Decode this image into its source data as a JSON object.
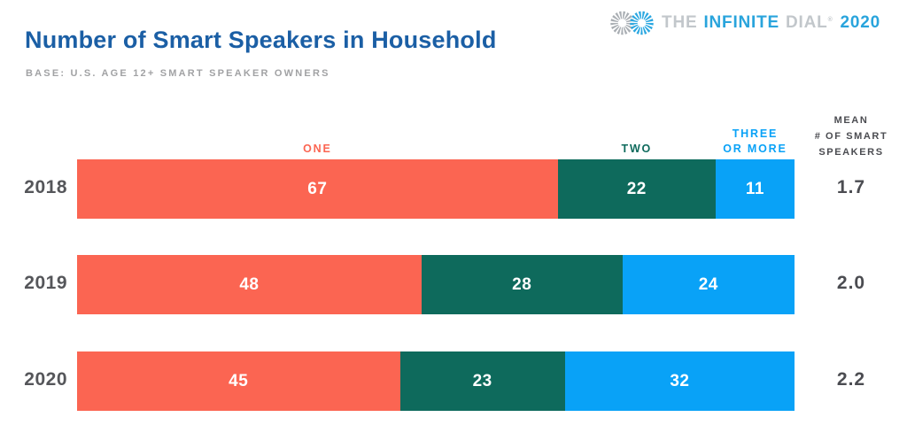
{
  "page": {
    "title": "Number of Smart Speakers in Household",
    "base_note": "BASE: U.S. AGE 12+ SMART SPEAKER OWNERS"
  },
  "logo": {
    "the": "THE",
    "infinite": "INFINITE",
    "dial": "DIAL",
    "registered": "®",
    "year": "2020",
    "icon": "infinity-icon"
  },
  "colors": {
    "title_blue": "#1b5fa5",
    "subtitle_gray": "#a1a2a4",
    "axis_gray": "#55565a",
    "dark_gray": "#4b4c51",
    "logo_blue": "#29a4dc",
    "logo_gray": "#c2c7cb"
  },
  "chart_data": {
    "type": "bar",
    "orientation": "horizontal",
    "stacked": true,
    "title": "Number of Smart Speakers in Household",
    "base": "U.S. Age 12+ smart speaker owners",
    "categories": [
      "2018",
      "2019",
      "2020"
    ],
    "series": [
      {
        "key": "one",
        "name": "ONE",
        "label_lines": [
          "ONE"
        ],
        "values": [
          67,
          48,
          45
        ]
      },
      {
        "key": "two",
        "name": "TWO",
        "label_lines": [
          "TWO"
        ],
        "values": [
          22,
          28,
          23
        ]
      },
      {
        "key": "three-or-more",
        "name": "THREE OR MORE",
        "label_lines": [
          "THREE",
          "OR MORE"
        ],
        "values": [
          11,
          24,
          32
        ]
      }
    ],
    "segment_colors": [
      "#fb6552",
      "#0e6a5c",
      "#09a2f7"
    ],
    "mean_header": [
      "MEAN",
      "# OF SMART",
      "SPEAKERS"
    ],
    "means": [
      "1.7",
      "2.0",
      "2.2"
    ],
    "xlim": [
      0,
      100
    ],
    "legend_position": "above-first-bar",
    "grid": false
  }
}
